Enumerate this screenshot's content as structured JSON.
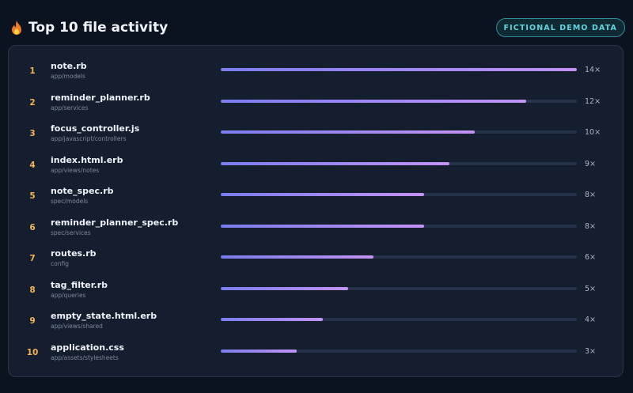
{
  "header": {
    "title": "Top 10 file activity",
    "icon": "fire-icon",
    "badge": "FICTIONAL DEMO DATA"
  },
  "colors": {
    "background": "#0b1220",
    "panel": "#151e2e",
    "bar_start": "#7b7dee",
    "bar_end": "#c392f5",
    "track": "#26324a",
    "rank": "#f0b455",
    "badge": "#5fd6df"
  },
  "chart_data": {
    "type": "bar",
    "orientation": "horizontal",
    "title": "Top 10 file activity",
    "xlim": [
      0,
      14
    ],
    "grid": false,
    "rows": [
      {
        "rank": "1",
        "file": "note.rb",
        "path": "app/models",
        "value": 14,
        "label": "14×"
      },
      {
        "rank": "2",
        "file": "reminder_planner.rb",
        "path": "app/services",
        "value": 12,
        "label": "12×"
      },
      {
        "rank": "3",
        "file": "focus_controller.js",
        "path": "app/javascript/controllers",
        "value": 10,
        "label": "10×"
      },
      {
        "rank": "4",
        "file": "index.html.erb",
        "path": "app/views/notes",
        "value": 9,
        "label": "9×"
      },
      {
        "rank": "5",
        "file": "note_spec.rb",
        "path": "spec/models",
        "value": 8,
        "label": "8×"
      },
      {
        "rank": "6",
        "file": "reminder_planner_spec.rb",
        "path": "spec/services",
        "value": 8,
        "label": "8×"
      },
      {
        "rank": "7",
        "file": "routes.rb",
        "path": "config",
        "value": 6,
        "label": "6×"
      },
      {
        "rank": "8",
        "file": "tag_filter.rb",
        "path": "app/queries",
        "value": 5,
        "label": "5×"
      },
      {
        "rank": "9",
        "file": "empty_state.html.erb",
        "path": "app/views/shared",
        "value": 4,
        "label": "4×"
      },
      {
        "rank": "10",
        "file": "application.css",
        "path": "app/assets/stylesheets",
        "value": 3,
        "label": "3×"
      }
    ]
  }
}
